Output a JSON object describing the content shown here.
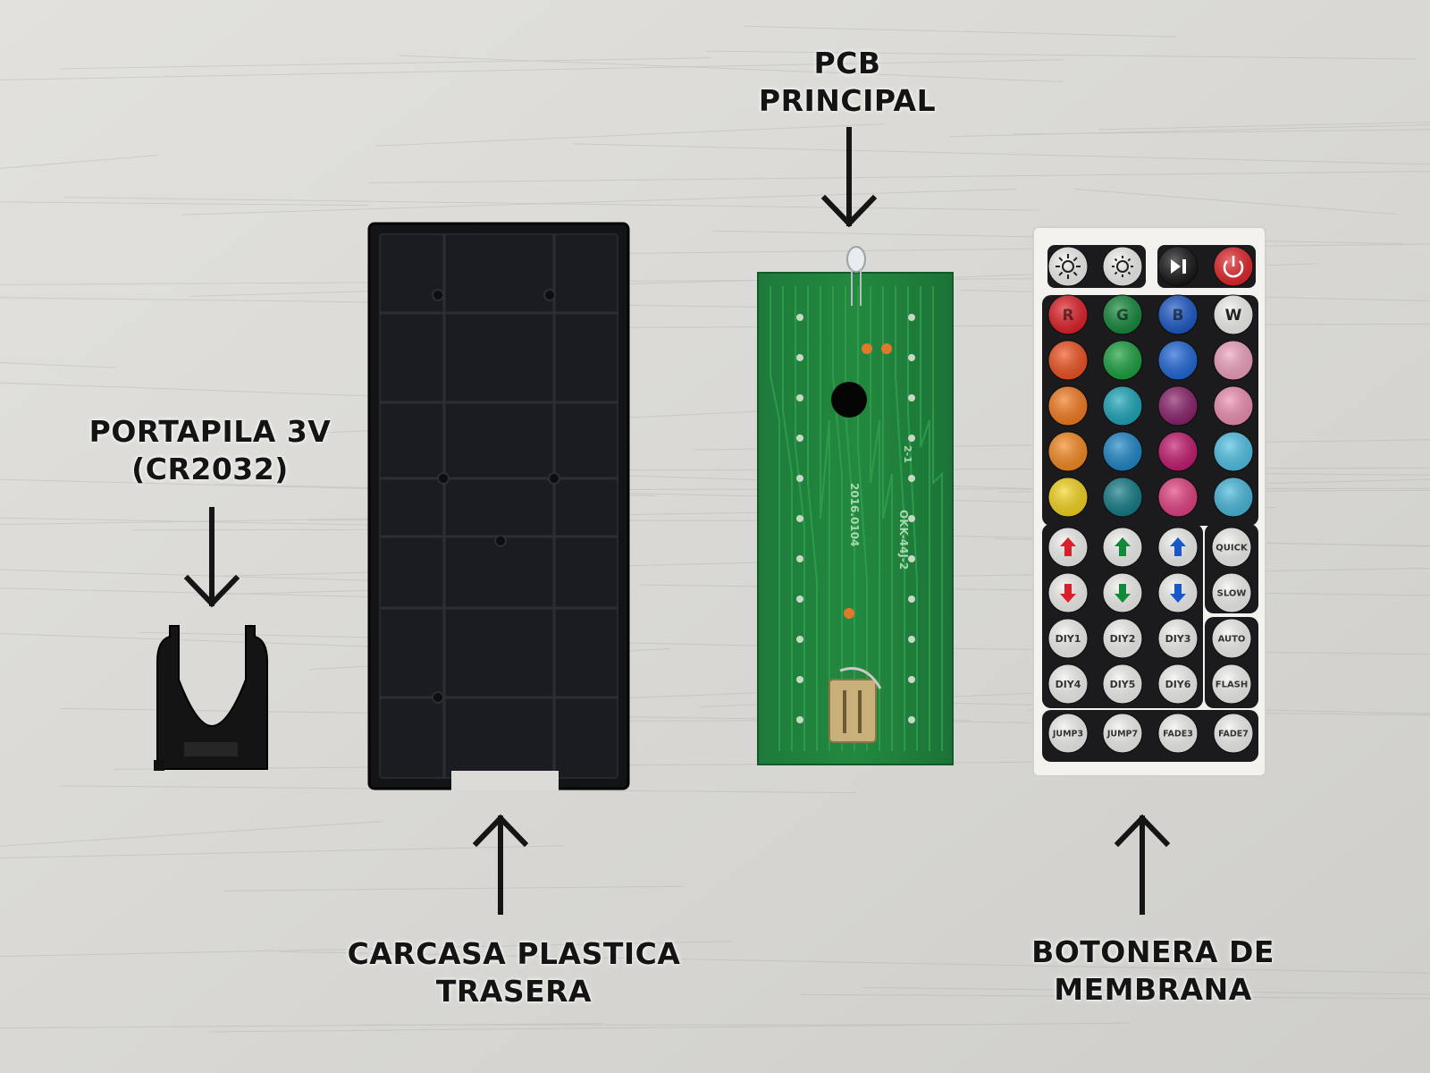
{
  "labels": {
    "pcb": [
      "PCB",
      "PRINCIPAL"
    ],
    "holder": [
      "PORTAPILA 3V",
      "(CR2032)"
    ],
    "shell": [
      "CARCASA PLASTICA",
      "TRASERA"
    ],
    "keypad": [
      "BOTONERA DE",
      "MEMBRANA"
    ]
  },
  "keypad": {
    "top_row": [
      {
        "icon": "brightness-up-icon",
        "color": "#f4f4f2"
      },
      {
        "icon": "brightness-down-icon",
        "color": "#f4f4f2"
      },
      {
        "icon": "play-pause-icon",
        "color": "#151515"
      },
      {
        "icon": "power-icon",
        "color": "#e3232a"
      }
    ],
    "color_rows": [
      [
        {
          "text": "R",
          "color": "#e11e26"
        },
        {
          "text": "G",
          "color": "#12883a"
        },
        {
          "text": "B",
          "color": "#1a58c9"
        },
        {
          "text": "W",
          "color": "#f5f5f3"
        }
      ],
      [
        {
          "color": "#f0511f"
        },
        {
          "color": "#18a13d"
        },
        {
          "color": "#1d66d8"
        },
        {
          "color": "#f1a2bf"
        }
      ],
      [
        {
          "color": "#f57a1e"
        },
        {
          "color": "#1aa6b8"
        },
        {
          "color": "#8a1f6a"
        },
        {
          "color": "#ef8fb2"
        }
      ],
      [
        {
          "color": "#f7891f"
        },
        {
          "color": "#1c86c9"
        },
        {
          "color": "#c4186e"
        },
        {
          "color": "#4fc3e6"
        }
      ],
      [
        {
          "color": "#f6d51c"
        },
        {
          "color": "#117b86"
        },
        {
          "color": "#e33f81"
        },
        {
          "color": "#47b9dd"
        }
      ]
    ],
    "arrow_rows": [
      [
        {
          "icon": "red-up-arrow-icon",
          "color": "#d9202a"
        },
        {
          "icon": "green-up-arrow-icon",
          "color": "#12883a"
        },
        {
          "icon": "blue-up-arrow-icon",
          "color": "#1a58c9"
        }
      ],
      [
        {
          "icon": "red-down-arrow-icon",
          "color": "#d9202a"
        },
        {
          "icon": "green-down-arrow-icon",
          "color": "#12883a"
        },
        {
          "icon": "blue-down-arrow-icon",
          "color": "#1a58c9"
        }
      ]
    ],
    "side_top": [
      "QUICK",
      "SLOW"
    ],
    "diy_rows": [
      [
        "DIY1",
        "DIY2",
        "DIY3"
      ],
      [
        "DIY4",
        "DIY5",
        "DIY6"
      ]
    ],
    "side_bottom": [
      "AUTO",
      "FLASH"
    ],
    "bottom_row": [
      "JUMP3",
      "JUMP7",
      "FADE3",
      "FADE7"
    ]
  },
  "pcb_silkscreen": [
    "2016.0104",
    "OKK-44J-2",
    "2-1"
  ]
}
